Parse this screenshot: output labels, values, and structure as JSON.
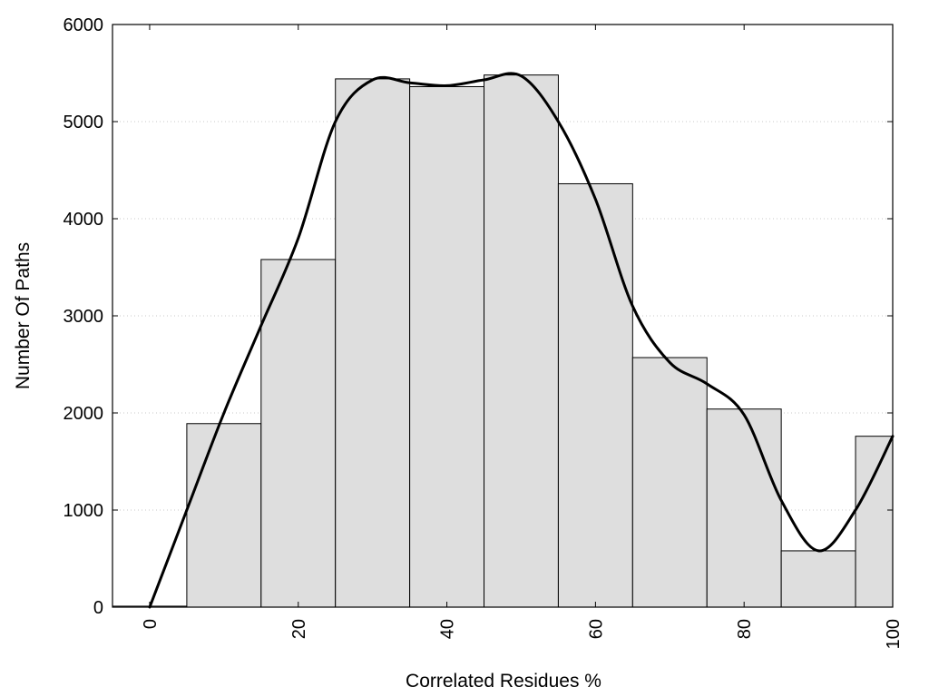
{
  "chart_data": {
    "type": "bar",
    "xlabel": "Correlated Residues %",
    "ylabel": "Number Of Paths",
    "xlim": [
      -5,
      100
    ],
    "ylim": [
      0,
      6000
    ],
    "x_ticks": [
      "0",
      "20",
      "40",
      "60",
      "80",
      "100"
    ],
    "y_ticks": [
      "0",
      "1000",
      "2000",
      "3000",
      "4000",
      "5000",
      "6000"
    ],
    "grid": "horizontal dotted",
    "bins": [
      {
        "from": -5,
        "to": 5,
        "value": 10
      },
      {
        "from": 5,
        "to": 15,
        "value": 1890
      },
      {
        "from": 15,
        "to": 25,
        "value": 3580
      },
      {
        "from": 25,
        "to": 35,
        "value": 5440
      },
      {
        "from": 35,
        "to": 45,
        "value": 5360
      },
      {
        "from": 45,
        "to": 55,
        "value": 5480
      },
      {
        "from": 55,
        "to": 65,
        "value": 4360
      },
      {
        "from": 65,
        "to": 75,
        "value": 2570
      },
      {
        "from": 75,
        "to": 85,
        "value": 2040
      },
      {
        "from": 85,
        "to": 95,
        "value": 580
      },
      {
        "from": 95,
        "to": 100,
        "value": 1760
      }
    ],
    "series": [
      {
        "type": "line",
        "x": [
          0,
          5,
          10,
          15,
          20,
          25,
          30,
          35,
          40,
          45,
          50,
          55,
          60,
          65,
          70,
          75,
          80,
          85,
          90,
          95,
          100
        ],
        "values": [
          0,
          1000,
          2000,
          2900,
          3800,
          5000,
          5430,
          5400,
          5370,
          5430,
          5470,
          5000,
          4200,
          3100,
          2520,
          2300,
          1980,
          1100,
          580,
          1000,
          1760
        ]
      }
    ]
  }
}
